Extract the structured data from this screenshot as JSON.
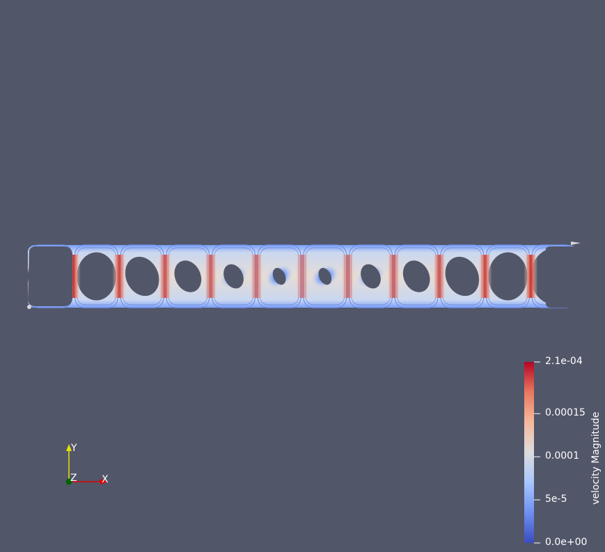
{
  "scene": {
    "background": "#525669",
    "field_name": "velocity Magnitude",
    "cell_count": 12
  },
  "color_legend": {
    "title": "velocity Magnitude",
    "range": [
      0.0,
      0.00021
    ],
    "ticks": [
      {
        "value": 0.00021,
        "label": "2.1e-04"
      },
      {
        "value": 0.00015,
        "label": "0.00015"
      },
      {
        "value": 0.0001,
        "label": "0.0001"
      },
      {
        "value": 5e-05,
        "label": "5e-5"
      },
      {
        "value": 0.0,
        "label": "0.0e+00"
      }
    ],
    "colormap": [
      "#3b4cc0",
      "#6f91f2",
      "#aac7fd",
      "#dddddd",
      "#f6b89c",
      "#e7745b",
      "#b40426"
    ]
  },
  "orientation_axes": {
    "y_label": "Y",
    "z_label": "Z",
    "x_label": "X",
    "y_color": "#e5e500",
    "x_color": "#e00000",
    "z_color": "#006400"
  }
}
